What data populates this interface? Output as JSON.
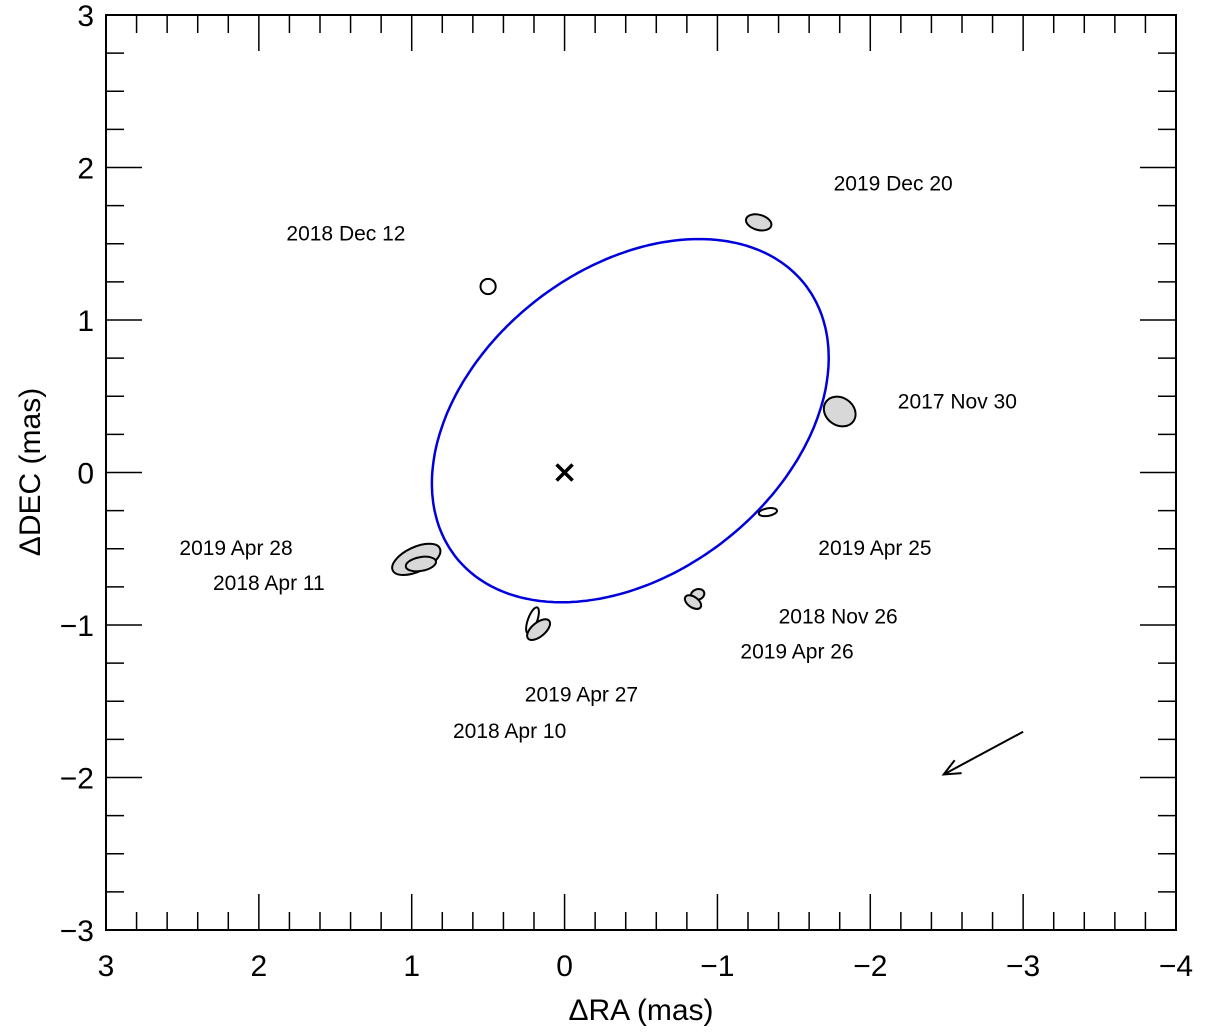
{
  "chart_data": {
    "type": "scatter",
    "title": "",
    "xlabel": "ΔRA (mas)",
    "ylabel": "ΔDEC (mas)",
    "xlim": [
      3,
      -4
    ],
    "ylim": [
      -3,
      3
    ],
    "x_ticks": [
      3,
      2,
      1,
      0,
      -1,
      -2,
      -3,
      -4
    ],
    "x_tick_labels": [
      "3",
      "2",
      "1",
      "0",
      "−1",
      "−2",
      "−3",
      "−4"
    ],
    "y_ticks": [
      -3,
      -2,
      -1,
      0,
      1,
      2,
      3
    ],
    "y_tick_labels": [
      "−3",
      "−2",
      "−1",
      "0",
      "1",
      "2",
      "3"
    ],
    "grid": false,
    "center_marker": {
      "x": 0,
      "y": 0,
      "symbol": "×"
    },
    "orbit": {
      "color": "#0000dd",
      "center": [
        -0.43,
        0.34
      ],
      "semi_major": 1.45,
      "semi_minor": 1.0,
      "rotation_deg": 38
    },
    "observations": [
      {
        "x": -1.8,
        "y": 0.4,
        "ex": 0.09,
        "ey": 0.11,
        "angle": 55,
        "filled": true
      },
      {
        "x": -1.27,
        "y": 1.64,
        "ex": 0.085,
        "ey": 0.05,
        "angle": -15,
        "filled": true
      },
      {
        "x": 0.5,
        "y": 1.22,
        "ex": 0.05,
        "ey": 0.05,
        "angle": 0,
        "filled": false
      },
      {
        "x": 0.97,
        "y": -0.57,
        "ex": 0.17,
        "ey": 0.08,
        "angle": 25,
        "filled": true
      },
      {
        "x": 0.94,
        "y": -0.6,
        "ex": 0.1,
        "ey": 0.045,
        "angle": 10,
        "filled": true
      },
      {
        "x": 0.21,
        "y": -0.97,
        "ex": 0.09,
        "ey": 0.03,
        "angle": 70,
        "filled": false
      },
      {
        "x": 0.17,
        "y": -1.03,
        "ex": 0.09,
        "ey": 0.045,
        "angle": 40,
        "filled": true
      },
      {
        "x": -0.87,
        "y": -0.8,
        "ex": 0.045,
        "ey": 0.035,
        "angle": 20,
        "filled": true
      },
      {
        "x": -0.84,
        "y": -0.85,
        "ex": 0.06,
        "ey": 0.035,
        "angle": -35,
        "filled": true
      },
      {
        "x": -1.33,
        "y": -0.26,
        "ex": 0.06,
        "ey": 0.025,
        "angle": 10,
        "filled": false
      }
    ],
    "annotations": [
      {
        "text": "2019 Dec 20",
        "x": -1.76,
        "y": 1.85
      },
      {
        "text": "2018 Dec 12",
        "x": 1.82,
        "y": 1.52
      },
      {
        "text": "2017 Nov 30",
        "x": -2.18,
        "y": 0.42
      },
      {
        "text": "2019 Apr 28",
        "x": 2.52,
        "y": -0.54
      },
      {
        "text": "2018 Apr 11",
        "x": 2.3,
        "y": -0.77
      },
      {
        "text": "2019 Apr 25",
        "x": -1.66,
        "y": -0.54
      },
      {
        "text": "2018 Nov 26",
        "x": -1.4,
        "y": -0.99
      },
      {
        "text": "2019 Apr 26",
        "x": -1.15,
        "y": -1.22
      },
      {
        "text": "2019 Apr 27",
        "x": 0.26,
        "y": -1.5
      },
      {
        "text": "2018 Apr 10",
        "x": 0.73,
        "y": -1.74
      }
    ],
    "motion_arrow": {
      "from": [
        -3.0,
        -1.7
      ],
      "to": [
        -2.48,
        -1.98
      ]
    }
  }
}
